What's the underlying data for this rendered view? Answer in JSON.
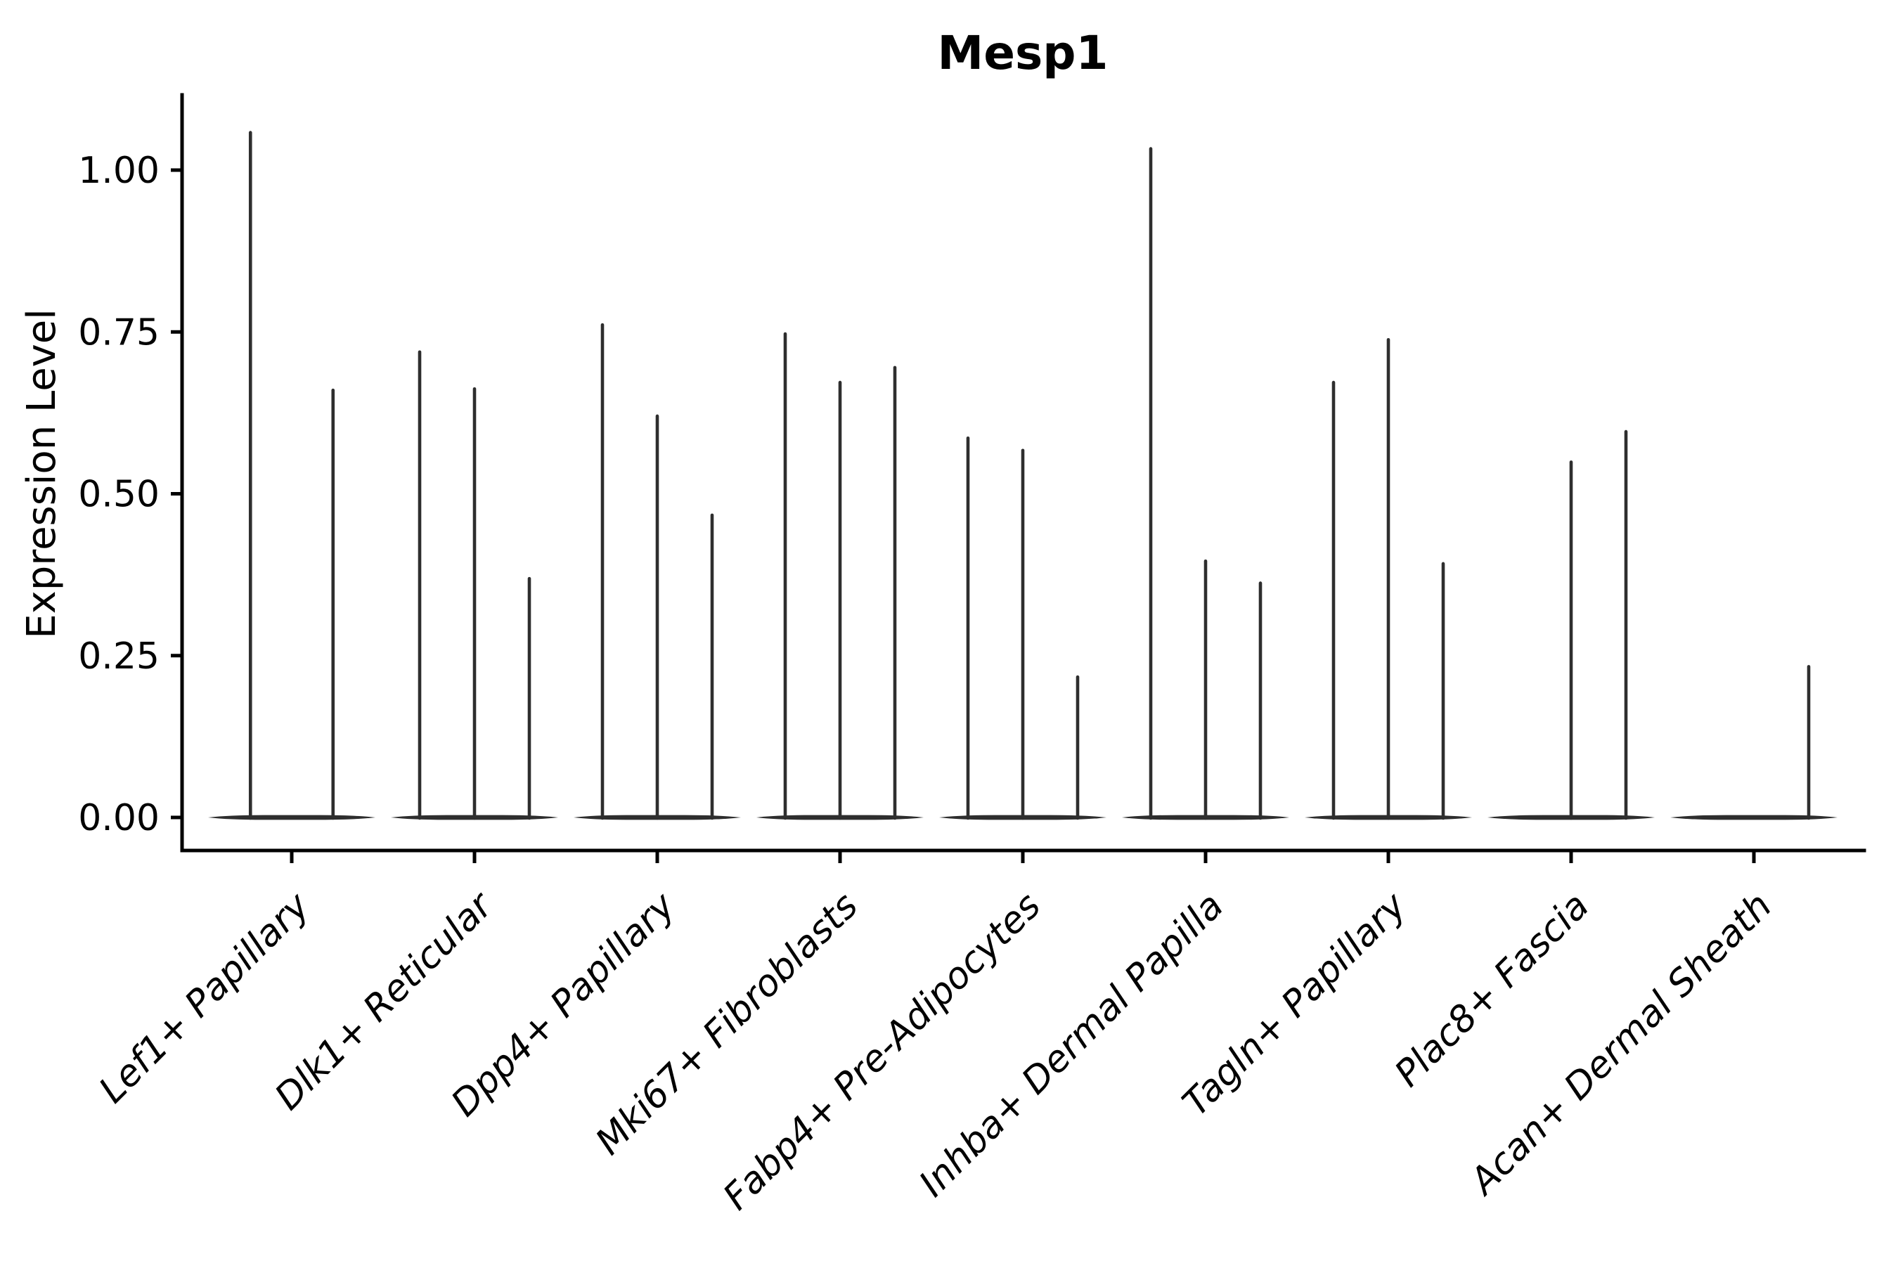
{
  "chart_data": {
    "type": "violin",
    "title": "Mesp1",
    "ylabel": "Expression Level",
    "xlabel": "",
    "grid": false,
    "legend": "none",
    "ylim": [
      -0.05,
      1.11
    ],
    "yticks": [
      {
        "value": 0.0,
        "label": "0.00"
      },
      {
        "value": 0.25,
        "label": "0.25"
      },
      {
        "value": 0.5,
        "label": "0.50"
      },
      {
        "value": 0.75,
        "label": "0.75"
      },
      {
        "value": 1.0,
        "label": "1.00"
      }
    ],
    "violin_color": "#2e2e2e",
    "axis_color": "#000000",
    "note": "Each category shows collapsed violins (max expression spikes) for its sub-violins; slots without a spike are flat at 0.",
    "categories": [
      {
        "label": "Lef1+ Papillary",
        "slots": 2,
        "violins": [
          {
            "slot": 1,
            "max": 1.058
          },
          {
            "slot": 2,
            "max": 0.66
          }
        ]
      },
      {
        "label": "Dlk1+ Reticular",
        "slots": 3,
        "violins": [
          {
            "slot": 1,
            "max": 0.719
          },
          {
            "slot": 2,
            "max": 0.662
          },
          {
            "slot": 3,
            "max": 0.369
          }
        ]
      },
      {
        "label": "Dpp4+ Papillary",
        "slots": 3,
        "violins": [
          {
            "slot": 1,
            "max": 0.761
          },
          {
            "slot": 2,
            "max": 0.62
          },
          {
            "slot": 3,
            "max": 0.467
          }
        ]
      },
      {
        "label": "Mki67+ Fibroblasts",
        "slots": 3,
        "violins": [
          {
            "slot": 1,
            "max": 0.747
          },
          {
            "slot": 2,
            "max": 0.672
          },
          {
            "slot": 3,
            "max": 0.695
          }
        ]
      },
      {
        "label": "Fabp4+ Pre-Adipocytes",
        "slots": 3,
        "violins": [
          {
            "slot": 1,
            "max": 0.586
          },
          {
            "slot": 2,
            "max": 0.567
          },
          {
            "slot": 3,
            "max": 0.217
          }
        ]
      },
      {
        "label": "Inhba+ Dermal Papilla",
        "slots": 3,
        "violins": [
          {
            "slot": 1,
            "max": 1.033
          },
          {
            "slot": 2,
            "max": 0.396
          },
          {
            "slot": 3,
            "max": 0.362
          }
        ]
      },
      {
        "label": "Tagln+ Papillary",
        "slots": 3,
        "violins": [
          {
            "slot": 1,
            "max": 0.672
          },
          {
            "slot": 2,
            "max": 0.738
          },
          {
            "slot": 3,
            "max": 0.392
          }
        ]
      },
      {
        "label": "Plac8+ Fascia",
        "slots": 3,
        "violins": [
          {
            "slot": 2,
            "max": 0.549
          },
          {
            "slot": 3,
            "max": 0.596
          }
        ]
      },
      {
        "label": "Acan+ Dermal Sheath",
        "slots": 3,
        "violins": [
          {
            "slot": 3,
            "max": 0.233
          }
        ]
      }
    ]
  }
}
